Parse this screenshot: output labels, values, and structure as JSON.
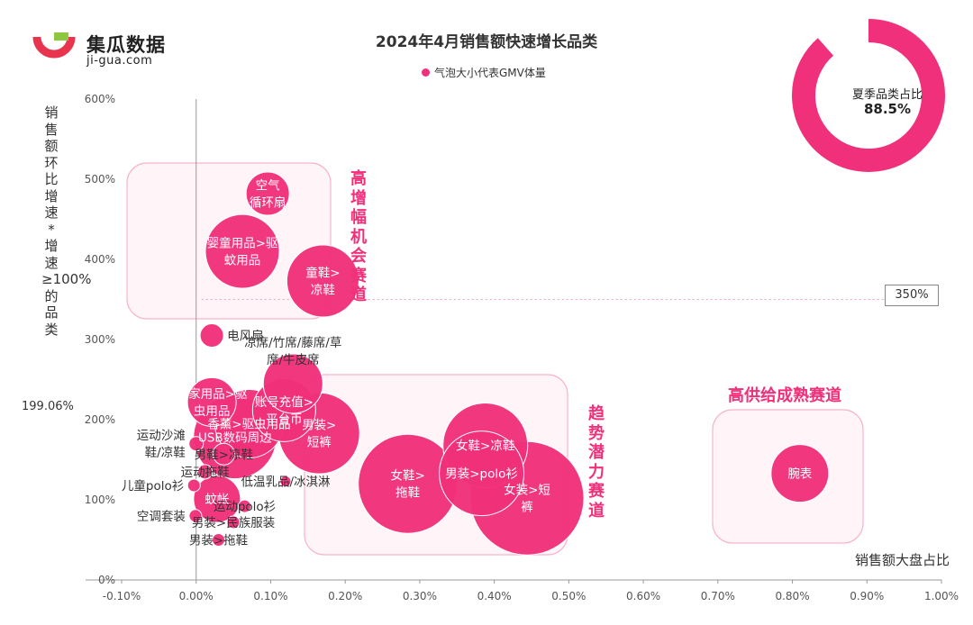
{
  "brand": {
    "name": "集瓜数据",
    "url": "ji-gua.com"
  },
  "title": "2024年4月销售额快速增长品类",
  "legend": {
    "label": "气泡大小代表GMV体量"
  },
  "summary": {
    "label": "夏季品类占比",
    "value": "88.5%",
    "fraction": 0.885
  },
  "colors": {
    "accent": "#f0307a",
    "zone_border": "#f6b3cc",
    "zone_fill": "#fff5f9",
    "ref_line": "#f3a0c0",
    "axis": "#999999",
    "text": "#333333"
  },
  "zones": [
    {
      "name": "high-growth",
      "label": "高增幅机会赛道"
    },
    {
      "name": "trend",
      "label": "趋势潜力赛道"
    },
    {
      "name": "mature",
      "label": "高供给成熟赛道"
    }
  ],
  "reference": {
    "label": "350%",
    "value": 350
  },
  "chart_data": {
    "type": "scatter",
    "title": "2024年4月销售额快速增长品类",
    "xlabel": "销售额大盘占比",
    "ylabel": "销售额环比增速  *增速≥100%的品类",
    "xlim": [
      -0.1,
      1.0
    ],
    "ylim": [
      0,
      600
    ],
    "x_ticks": [
      "-0.10%",
      "0.00%",
      "0.10%",
      "0.20%",
      "0.30%",
      "0.40%",
      "0.50%",
      "0.60%",
      "0.70%",
      "0.80%",
      "0.90%",
      "1.00%"
    ],
    "y_ticks": [
      "0%",
      "100%",
      "200%",
      "300%",
      "400%",
      "500%",
      "600%"
    ],
    "grid": false,
    "annotation": "199.06%",
    "size_meaning": "GMV",
    "bubbles": [
      {
        "name": "空气循环扇",
        "text": [
          "空气",
          "循环扇"
        ],
        "x": 0.096,
        "y": 482,
        "size": 24,
        "label_side": "center"
      },
      {
        "name": "婴童用品>驱蚊用品",
        "text": [
          "婴童用品>驱",
          "蚊用品"
        ],
        "x": 0.062,
        "y": 410,
        "size": 41,
        "label_side": "center"
      },
      {
        "name": "童鞋>凉鞋",
        "text": [
          "童鞋>",
          "凉鞋"
        ],
        "x": 0.17,
        "y": 373,
        "size": 40,
        "label_side": "center"
      },
      {
        "name": "电风扇",
        "text": [
          "电风扇"
        ],
        "x": 0.021,
        "y": 305,
        "size": 13,
        "label_side": "right"
      },
      {
        "name": "凉席/竹席/藤席/草席/牛皮席",
        "text": [
          "凉席/竹席/藤席/草",
          "席/牛皮席"
        ],
        "x": 0.13,
        "y": 245,
        "size": 33,
        "label_side": "above"
      },
      {
        "name": "居家用品>驱虫用品",
        "text": [
          "居家用品>驱",
          "虫用品"
        ],
        "x": 0.021,
        "y": 222,
        "size": 27,
        "label_side": "center"
      },
      {
        "name": "账号充值>平台币",
        "text": [
          "账号充值>",
          "平台币"
        ],
        "x": 0.118,
        "y": 212,
        "size": 35,
        "label_side": "center"
      },
      {
        "name": "香薰>驱虫用品",
        "text": [
          "香薰>驱虫用品"
        ],
        "x": 0.071,
        "y": 195,
        "size": 38,
        "label_side": "center"
      },
      {
        "name": "男装>短裤",
        "text": [
          "男装>",
          "短裤"
        ],
        "x": 0.165,
        "y": 183,
        "size": 45,
        "label_side": "center"
      },
      {
        "name": "USB数码周边",
        "text": [
          "USB数码周边"
        ],
        "x": 0.052,
        "y": 178,
        "size": 46,
        "label_side": "center"
      },
      {
        "name": "运动沙滩鞋/凉鞋",
        "text": [
          "运动沙滩",
          "鞋/凉鞋"
        ],
        "x": 0.0,
        "y": 170,
        "size": 8,
        "label_side": "left"
      },
      {
        "name": "男鞋>凉鞋",
        "text": [
          "男鞋>凉鞋"
        ],
        "x": 0.037,
        "y": 157,
        "size": 12,
        "label_side": "center"
      },
      {
        "name": "运动拖鞋",
        "text": [
          "运动拖鞋"
        ],
        "x": 0.012,
        "y": 135,
        "size": 8,
        "label_side": "center"
      },
      {
        "name": "低温乳品/冰淇淋",
        "text": [
          "低温乳品/冰淇淋"
        ],
        "x": 0.12,
        "y": 123,
        "size": 6,
        "label_side": "center"
      },
      {
        "name": "儿童polo衫",
        "text": [
          "儿童polo衫"
        ],
        "x": -0.003,
        "y": 118,
        "size": 7,
        "label_side": "left"
      },
      {
        "name": "女鞋>拖鞋",
        "text": [
          "女鞋>",
          "拖鞋"
        ],
        "x": 0.284,
        "y": 120,
        "size": 55,
        "label_side": "center"
      },
      {
        "name": "女鞋>凉鞋",
        "text": [
          "女鞋>凉鞋"
        ],
        "x": 0.388,
        "y": 168,
        "size": 47,
        "label_side": "center"
      },
      {
        "name": "男装>polo衫",
        "text": [
          "男装>polo衫"
        ],
        "x": 0.383,
        "y": 133,
        "size": 47,
        "label_side": "center"
      },
      {
        "name": "女装>短裤",
        "text": [
          "女装>短",
          "裤"
        ],
        "x": 0.444,
        "y": 102,
        "size": 63,
        "label_side": "center"
      },
      {
        "name": "蚊帐",
        "text": [
          "蚊帐"
        ],
        "x": 0.028,
        "y": 101,
        "size": 26,
        "label_side": "center"
      },
      {
        "name": "运动polo衫",
        "text": [
          "运动polo衫"
        ],
        "x": 0.065,
        "y": 92,
        "size": 7,
        "label_side": "center"
      },
      {
        "name": "空调套装",
        "text": [
          "空调套装"
        ],
        "x": -0.001,
        "y": 80,
        "size": 7,
        "label_side": "left"
      },
      {
        "name": "男装>民族服装",
        "text": [
          "男装>民族服装"
        ],
        "x": 0.05,
        "y": 72,
        "size": 7,
        "label_side": "center"
      },
      {
        "name": "男装>拖鞋",
        "text": [
          "男装>拖鞋"
        ],
        "x": 0.03,
        "y": 50,
        "size": 7,
        "label_side": "center"
      },
      {
        "name": "腕表",
        "text": [
          "腕表"
        ],
        "x": 0.81,
        "y": 133,
        "size": 32,
        "label_side": "center"
      }
    ]
  }
}
